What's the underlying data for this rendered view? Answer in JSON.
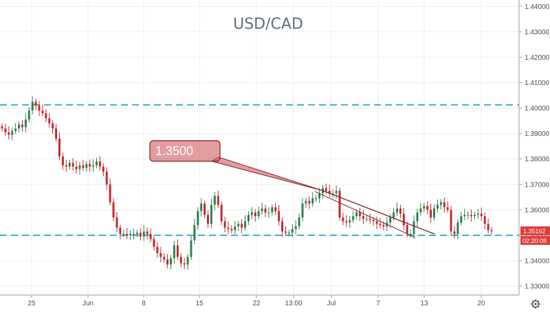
{
  "chart_data": {
    "type": "candlestick",
    "title": "USD/CAD",
    "ylim": [
      1.3265,
      1.4425
    ],
    "yticks": [
      "1.44000",
      "1.43000",
      "1.42000",
      "1.41000",
      "1.40000",
      "1.39000",
      "1.38000",
      "1.37000",
      "1.36000",
      "1.35000",
      "1.34000",
      "1.33000"
    ],
    "yaxis_position": "right",
    "xticks": [
      "25",
      "Jun",
      "8",
      "15",
      "22",
      "13:00",
      "Jul",
      "7",
      "13",
      "20"
    ],
    "grid": true,
    "horizontal_levels": [
      {
        "value": 1.4013,
        "color": "#2bb3c9",
        "style": "dashed"
      },
      {
        "value": 1.35,
        "color": "#2bb3c9",
        "style": "dashed"
      }
    ],
    "trendline": {
      "color": "#7d1f24",
      "from": {
        "x": "Jun 29",
        "y": 1.3675
      },
      "to": {
        "x": "Jul 14",
        "y": 1.3505
      }
    },
    "callout": {
      "label": "1.3500",
      "color": "#cc4b52"
    },
    "last_price": {
      "value": "1.35162",
      "countdown": "02:20:08",
      "color": "#e03b3b"
    },
    "series": [
      {
        "values": [
          1.392,
          1.3905,
          1.3895,
          1.391,
          1.392,
          1.3935,
          1.3925,
          1.3955,
          1.399,
          1.4025,
          1.401,
          1.399,
          1.398,
          1.396,
          1.394,
          1.392,
          1.388,
          1.381,
          1.3775,
          1.377,
          1.3785,
          1.377,
          1.376,
          1.3775,
          1.3765,
          1.378,
          1.377,
          1.3775,
          1.379,
          1.377,
          1.375,
          1.37,
          1.363,
          1.357,
          1.353,
          1.3505,
          1.3505,
          1.35,
          1.3505,
          1.3505,
          1.351,
          1.3495,
          1.3515,
          1.3505,
          1.3485,
          1.3455,
          1.343,
          1.3415,
          1.3405,
          1.3385,
          1.341,
          1.346,
          1.3415,
          1.339,
          1.3385,
          1.3415,
          1.348,
          1.354,
          1.3595,
          1.3625,
          1.358,
          1.3545,
          1.362,
          1.3655,
          1.362,
          1.3555,
          1.353,
          1.3525,
          1.352,
          1.3535,
          1.3545,
          1.353,
          1.3555,
          1.358,
          1.359,
          1.3575,
          1.3595,
          1.3605,
          1.359,
          1.359,
          1.361,
          1.3595,
          1.3555,
          1.3515,
          1.351,
          1.351,
          1.3525,
          1.3535,
          1.357,
          1.3625,
          1.3635,
          1.3625,
          1.3645,
          1.3645,
          1.3665,
          1.3685,
          1.3675,
          1.3665,
          1.3665,
          1.3675,
          1.357,
          1.3555,
          1.355,
          1.356,
          1.3575,
          1.359,
          1.3575,
          1.3565,
          1.3565,
          1.356,
          1.3555,
          1.3545,
          1.354,
          1.3535,
          1.355,
          1.357,
          1.359,
          1.3605,
          1.3585,
          1.354,
          1.3505,
          1.3505,
          1.3555,
          1.359,
          1.3605,
          1.3615,
          1.36,
          1.357,
          1.3605,
          1.362,
          1.363,
          1.361,
          1.36,
          1.3515,
          1.3505,
          1.355,
          1.3575,
          1.358,
          1.358,
          1.3575,
          1.358,
          1.3585,
          1.3575,
          1.3545,
          1.352,
          1.3516
        ]
      }
    ]
  }
}
